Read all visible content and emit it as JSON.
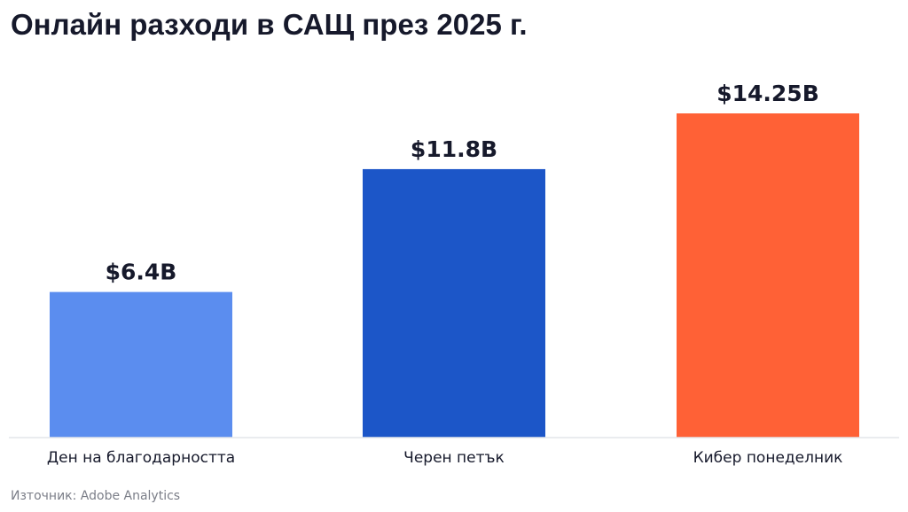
{
  "chart_data": {
    "type": "bar",
    "title": "Онлайн разходи в САЩ през 2025 г.",
    "categories": [
      "Ден на благодарността",
      "Черен петък",
      "Кибер понеделник"
    ],
    "values": [
      6.4,
      11.8,
      14.25
    ],
    "value_labels": [
      "$6.4B",
      "$11.8B",
      "$14.25B"
    ],
    "unit": "$B",
    "colors": [
      "#5b8def",
      "#1c56c8",
      "#ff6136"
    ],
    "ylim": [
      0,
      14.25
    ],
    "grid": false,
    "legend": "none",
    "source": "Източник: Adobe Analytics"
  }
}
